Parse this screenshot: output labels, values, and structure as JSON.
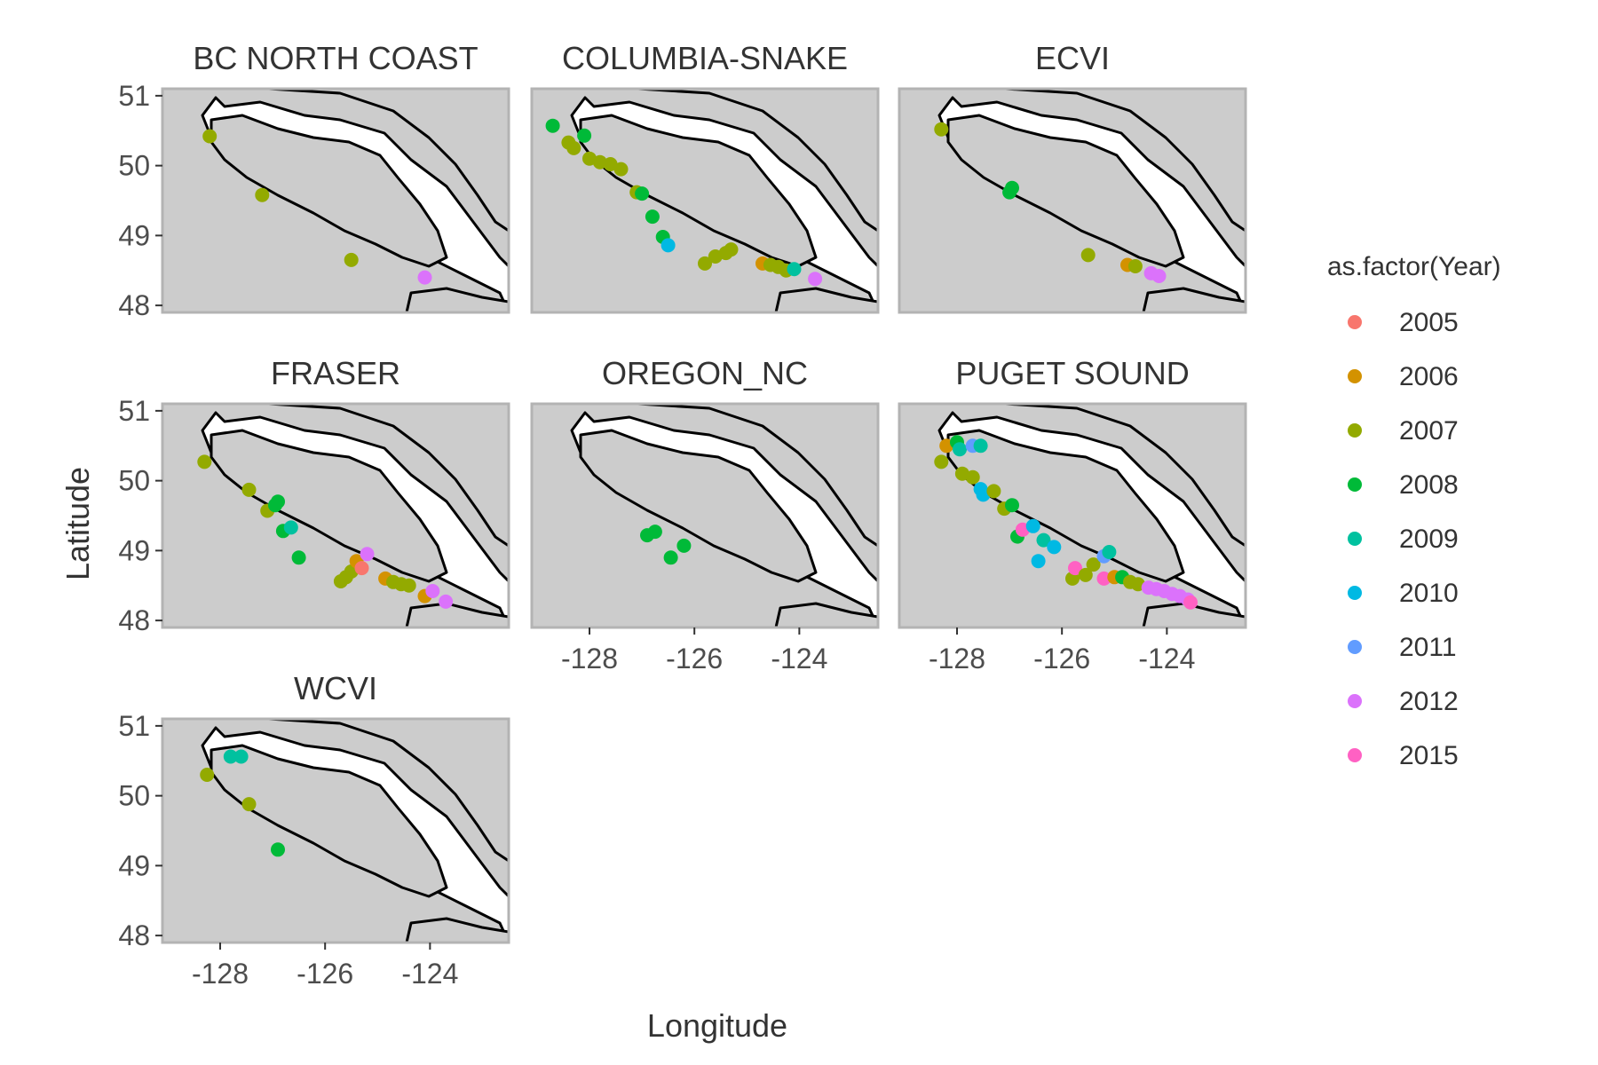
{
  "chart_data": {
    "type": "scatter",
    "facet_type": "map",
    "xlabel": "Longitude",
    "ylabel": "Latitude",
    "xlim": [
      -129.1,
      -122.5
    ],
    "ylim": [
      47.9,
      51.1
    ],
    "x_ticks": [
      -128,
      -126,
      -124
    ],
    "y_ticks": [
      48,
      49,
      50,
      51
    ],
    "legend": {
      "title": "as.factor(Year)",
      "placement": "right",
      "entries": [
        {
          "label": "2005",
          "color": "#F8766D"
        },
        {
          "label": "2006",
          "color": "#D39200"
        },
        {
          "label": "2007",
          "color": "#93AA00"
        },
        {
          "label": "2008",
          "color": "#00BA38"
        },
        {
          "label": "2009",
          "color": "#00C19F"
        },
        {
          "label": "2010",
          "color": "#00B9E3"
        },
        {
          "label": "2011",
          "color": "#619CFF"
        },
        {
          "label": "2012",
          "color": "#DB72FB"
        },
        {
          "label": "2015",
          "color": "#FF61C3"
        }
      ]
    },
    "facets": [
      {
        "title": "BC NORTH COAST",
        "points": [
          {
            "x": -128.2,
            "y": 50.42,
            "year": "2007"
          },
          {
            "x": -127.2,
            "y": 49.58,
            "year": "2007"
          },
          {
            "x": -125.5,
            "y": 48.65,
            "year": "2007"
          },
          {
            "x": -124.1,
            "y": 48.4,
            "year": "2012"
          }
        ]
      },
      {
        "title": "COLUMBIA-SNAKE",
        "points": [
          {
            "x": -128.7,
            "y": 50.57,
            "year": "2008"
          },
          {
            "x": -128.1,
            "y": 50.43,
            "year": "2008"
          },
          {
            "x": -128.4,
            "y": 50.33,
            "year": "2007"
          },
          {
            "x": -128.3,
            "y": 50.25,
            "year": "2007"
          },
          {
            "x": -128.0,
            "y": 50.1,
            "year": "2007"
          },
          {
            "x": -127.8,
            "y": 50.05,
            "year": "2007"
          },
          {
            "x": -127.6,
            "y": 50.02,
            "year": "2007"
          },
          {
            "x": -127.4,
            "y": 49.95,
            "year": "2007"
          },
          {
            "x": -127.1,
            "y": 49.62,
            "year": "2007"
          },
          {
            "x": -127.0,
            "y": 49.6,
            "year": "2008"
          },
          {
            "x": -126.8,
            "y": 49.27,
            "year": "2008"
          },
          {
            "x": -126.6,
            "y": 48.98,
            "year": "2008"
          },
          {
            "x": -126.5,
            "y": 48.86,
            "year": "2010"
          },
          {
            "x": -125.8,
            "y": 48.6,
            "year": "2007"
          },
          {
            "x": -125.6,
            "y": 48.7,
            "year": "2007"
          },
          {
            "x": -125.4,
            "y": 48.75,
            "year": "2007"
          },
          {
            "x": -125.3,
            "y": 48.8,
            "year": "2007"
          },
          {
            "x": -124.7,
            "y": 48.6,
            "year": "2006"
          },
          {
            "x": -124.55,
            "y": 48.58,
            "year": "2007"
          },
          {
            "x": -124.4,
            "y": 48.55,
            "year": "2007"
          },
          {
            "x": -124.25,
            "y": 48.5,
            "year": "2007"
          },
          {
            "x": -124.1,
            "y": 48.52,
            "year": "2009"
          },
          {
            "x": -123.7,
            "y": 48.38,
            "year": "2012"
          }
        ]
      },
      {
        "title": "ECVI",
        "points": [
          {
            "x": -128.3,
            "y": 50.52,
            "year": "2007"
          },
          {
            "x": -127.0,
            "y": 49.62,
            "year": "2008"
          },
          {
            "x": -126.95,
            "y": 49.68,
            "year": "2008"
          },
          {
            "x": -125.5,
            "y": 48.72,
            "year": "2007"
          },
          {
            "x": -124.75,
            "y": 48.58,
            "year": "2006"
          },
          {
            "x": -124.6,
            "y": 48.56,
            "year": "2007"
          },
          {
            "x": -124.3,
            "y": 48.46,
            "year": "2012"
          },
          {
            "x": -124.15,
            "y": 48.42,
            "year": "2012"
          }
        ]
      },
      {
        "title": "FRASER",
        "points": [
          {
            "x": -128.3,
            "y": 50.27,
            "year": "2007"
          },
          {
            "x": -127.45,
            "y": 49.87,
            "year": "2007"
          },
          {
            "x": -127.1,
            "y": 49.57,
            "year": "2007"
          },
          {
            "x": -126.95,
            "y": 49.65,
            "year": "2008"
          },
          {
            "x": -126.9,
            "y": 49.7,
            "year": "2008"
          },
          {
            "x": -126.8,
            "y": 49.28,
            "year": "2008"
          },
          {
            "x": -126.65,
            "y": 49.33,
            "year": "2009"
          },
          {
            "x": -126.5,
            "y": 48.9,
            "year": "2008"
          },
          {
            "x": -125.7,
            "y": 48.56,
            "year": "2007"
          },
          {
            "x": -125.6,
            "y": 48.62,
            "year": "2007"
          },
          {
            "x": -125.5,
            "y": 48.7,
            "year": "2007"
          },
          {
            "x": -125.4,
            "y": 48.85,
            "year": "2006"
          },
          {
            "x": -125.3,
            "y": 48.75,
            "year": "2005"
          },
          {
            "x": -125.2,
            "y": 48.95,
            "year": "2012"
          },
          {
            "x": -124.85,
            "y": 48.6,
            "year": "2006"
          },
          {
            "x": -124.7,
            "y": 48.55,
            "year": "2007"
          },
          {
            "x": -124.55,
            "y": 48.52,
            "year": "2007"
          },
          {
            "x": -124.4,
            "y": 48.5,
            "year": "2007"
          },
          {
            "x": -124.1,
            "y": 48.35,
            "year": "2006"
          },
          {
            "x": -123.95,
            "y": 48.42,
            "year": "2012"
          },
          {
            "x": -123.7,
            "y": 48.27,
            "year": "2012"
          }
        ]
      },
      {
        "title": "OREGON_NC",
        "points": [
          {
            "x": -126.9,
            "y": 49.22,
            "year": "2008"
          },
          {
            "x": -126.75,
            "y": 49.27,
            "year": "2008"
          },
          {
            "x": -126.45,
            "y": 48.9,
            "year": "2008"
          },
          {
            "x": -126.2,
            "y": 49.07,
            "year": "2008"
          }
        ]
      },
      {
        "title": "PUGET SOUND",
        "points": [
          {
            "x": -128.2,
            "y": 50.5,
            "year": "2006"
          },
          {
            "x": -128.0,
            "y": 50.55,
            "year": "2008"
          },
          {
            "x": -127.95,
            "y": 50.45,
            "year": "2009"
          },
          {
            "x": -127.7,
            "y": 50.5,
            "year": "2011"
          },
          {
            "x": -127.55,
            "y": 50.5,
            "year": "2009"
          },
          {
            "x": -128.3,
            "y": 50.27,
            "year": "2007"
          },
          {
            "x": -127.9,
            "y": 50.1,
            "year": "2007"
          },
          {
            "x": -127.7,
            "y": 50.05,
            "year": "2007"
          },
          {
            "x": -127.55,
            "y": 49.88,
            "year": "2010"
          },
          {
            "x": -127.5,
            "y": 49.8,
            "year": "2010"
          },
          {
            "x": -127.3,
            "y": 49.85,
            "year": "2007"
          },
          {
            "x": -127.1,
            "y": 49.6,
            "year": "2007"
          },
          {
            "x": -126.95,
            "y": 49.65,
            "year": "2008"
          },
          {
            "x": -126.85,
            "y": 49.2,
            "year": "2008"
          },
          {
            "x": -126.75,
            "y": 49.3,
            "year": "2015"
          },
          {
            "x": -126.55,
            "y": 49.35,
            "year": "2010"
          },
          {
            "x": -126.35,
            "y": 49.15,
            "year": "2009"
          },
          {
            "x": -126.15,
            "y": 49.05,
            "year": "2010"
          },
          {
            "x": -126.45,
            "y": 48.85,
            "year": "2010"
          },
          {
            "x": -125.8,
            "y": 48.6,
            "year": "2007"
          },
          {
            "x": -125.75,
            "y": 48.75,
            "year": "2015"
          },
          {
            "x": -125.55,
            "y": 48.65,
            "year": "2007"
          },
          {
            "x": -125.4,
            "y": 48.8,
            "year": "2007"
          },
          {
            "x": -125.2,
            "y": 48.92,
            "year": "2011"
          },
          {
            "x": -125.1,
            "y": 48.98,
            "year": "2009"
          },
          {
            "x": -125.2,
            "y": 48.6,
            "year": "2015"
          },
          {
            "x": -125.0,
            "y": 48.62,
            "year": "2006"
          },
          {
            "x": -124.85,
            "y": 48.62,
            "year": "2008"
          },
          {
            "x": -124.7,
            "y": 48.55,
            "year": "2007"
          },
          {
            "x": -124.55,
            "y": 48.52,
            "year": "2007"
          },
          {
            "x": -124.35,
            "y": 48.47,
            "year": "2012"
          },
          {
            "x": -124.2,
            "y": 48.45,
            "year": "2012"
          },
          {
            "x": -124.05,
            "y": 48.42,
            "year": "2012"
          },
          {
            "x": -123.9,
            "y": 48.38,
            "year": "2012"
          },
          {
            "x": -123.75,
            "y": 48.35,
            "year": "2012"
          },
          {
            "x": -123.6,
            "y": 48.3,
            "year": "2012"
          },
          {
            "x": -123.55,
            "y": 48.26,
            "year": "2015"
          }
        ]
      },
      {
        "title": "WCVI",
        "points": [
          {
            "x": -128.25,
            "y": 50.3,
            "year": "2007"
          },
          {
            "x": -127.8,
            "y": 50.56,
            "year": "2009"
          },
          {
            "x": -127.6,
            "y": 50.56,
            "year": "2009"
          },
          {
            "x": -127.45,
            "y": 49.88,
            "year": "2007"
          },
          {
            "x": -126.9,
            "y": 49.23,
            "year": "2008"
          }
        ]
      }
    ]
  }
}
